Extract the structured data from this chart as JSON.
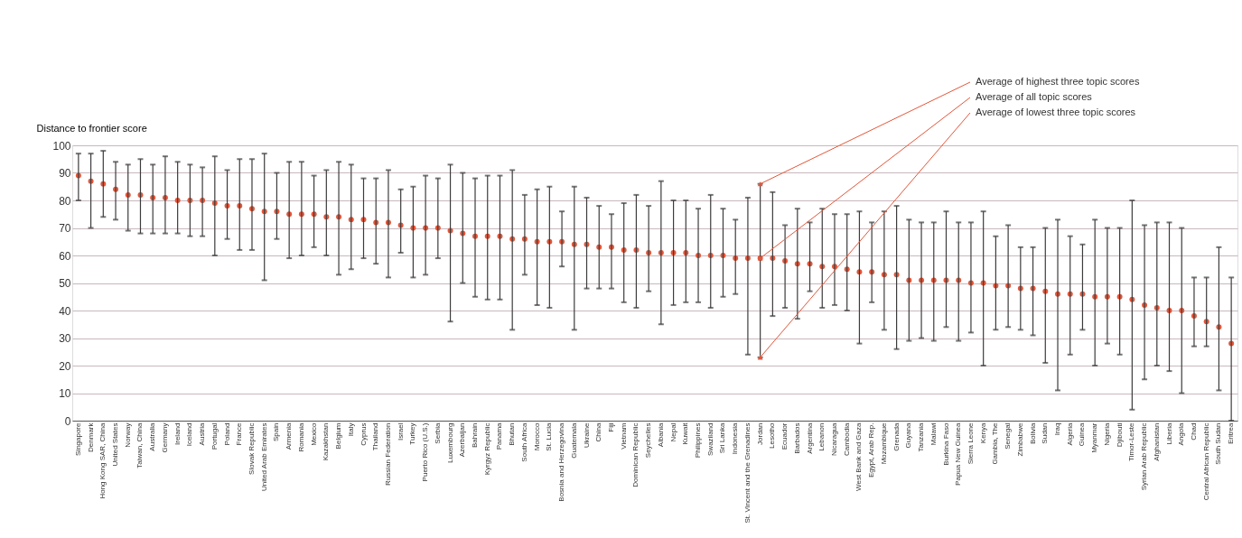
{
  "chart_data": {
    "type": "scatter",
    "ylabel": "Distance to frontier score",
    "categories": [
      "Singapore",
      "Denmark",
      "Hong Kong SAR, China",
      "United States",
      "Norway",
      "Taiwan, China",
      "Australia",
      "Germany",
      "Ireland",
      "Iceland",
      "Austria",
      "Portugal",
      "Poland",
      "France",
      "Slovak Republic",
      "United Arab Emirates",
      "Spain",
      "Armenia",
      "Romania",
      "Mexico",
      "Kazakhstan",
      "Belgium",
      "Italy",
      "Cyprus",
      "Thailand",
      "Russian Federation",
      "Israel",
      "Turkey",
      "Puerto Rico (U.S.)",
      "Serbia",
      "Luxembourg",
      "Azerbaijan",
      "Bahrain",
      "Kyrgyz Republic",
      "Panama",
      "Bhutan",
      "South Africa",
      "Morocco",
      "St. Lucia",
      "Bosnia and Herzegovina",
      "Guatemala",
      "Ukraine",
      "China",
      "Fiji",
      "Vietnam",
      "Dominican Republic",
      "Seychelles",
      "Albania",
      "Nepal",
      "Kuwait",
      "Philippines",
      "Swaziland",
      "Sri Lanka",
      "Indonesia",
      "St. Vincent and the Grenadines",
      "Jordan",
      "Lesotho",
      "Ecuador",
      "Barbados",
      "Argentina",
      "Lebanon",
      "Nicaragua",
      "Cambodia",
      "West Bank and Gaza",
      "Egypt, Arab Rep.",
      "Mozambique",
      "Grenada",
      "Guyana",
      "Tanzania",
      "Malawi",
      "Burkina Faso",
      "Papua New Guinea",
      "Sierra Leone",
      "Kenya",
      "Gambia, The",
      "Senegal",
      "Zimbabwe",
      "Bolivia",
      "Sudan",
      "Iraq",
      "Algeria",
      "Guinea",
      "Myanmar",
      "Nigeria",
      "Djibouti",
      "Timor-Leste",
      "Syrian Arab Republic",
      "Afghanistan",
      "Liberia",
      "Angola",
      "Chad",
      "Central African Republic",
      "South Sudan",
      "Eritrea"
    ],
    "series": [
      {
        "color": "#e2563a",
        "values": [
          89,
          87,
          86,
          84,
          82,
          82,
          81,
          81,
          80,
          80,
          80,
          79,
          78,
          78,
          77,
          76,
          76,
          75,
          75,
          75,
          74,
          74,
          73,
          73,
          72,
          72,
          71,
          70,
          70,
          70,
          69,
          68,
          67,
          67,
          67,
          66,
          66,
          65,
          65,
          65,
          64,
          64,
          63,
          63,
          62,
          62,
          61,
          61,
          61,
          61,
          60,
          60,
          60,
          59,
          59,
          59,
          59,
          58,
          57,
          57,
          56,
          56,
          55,
          54,
          54,
          53,
          53,
          51,
          51,
          51,
          51,
          51,
          50,
          50,
          49,
          49,
          48,
          48,
          47,
          46,
          46,
          46,
          45,
          45,
          45,
          44,
          42,
          41,
          40,
          40,
          38,
          36,
          34,
          28
        ],
        "errors": [
          [
            80,
            97
          ],
          [
            70,
            97
          ],
          [
            74,
            98
          ],
          [
            73,
            94
          ],
          [
            69,
            93
          ],
          [
            68,
            95
          ],
          [
            68,
            93
          ],
          [
            68,
            96
          ],
          [
            68,
            94
          ],
          [
            67,
            93
          ],
          [
            67,
            92
          ],
          [
            60,
            96
          ],
          [
            66,
            91
          ],
          [
            62,
            95
          ],
          [
            62,
            95
          ],
          [
            51,
            97
          ],
          [
            66,
            90
          ],
          [
            59,
            94
          ],
          [
            60,
            94
          ],
          [
            63,
            89
          ],
          [
            60,
            91
          ],
          [
            53,
            94
          ],
          [
            55,
            93
          ],
          [
            59,
            88
          ],
          [
            57,
            88
          ],
          [
            52,
            91
          ],
          [
            61,
            84
          ],
          [
            52,
            85
          ],
          [
            53,
            89
          ],
          [
            59,
            88
          ],
          [
            36,
            93
          ],
          [
            50,
            90
          ],
          [
            45,
            88
          ],
          [
            44,
            89
          ],
          [
            44,
            89
          ],
          [
            33,
            91
          ],
          [
            53,
            82
          ],
          [
            42,
            84
          ],
          [
            41,
            85
          ],
          [
            56,
            76
          ],
          [
            33,
            85
          ],
          [
            48,
            81
          ],
          [
            48,
            78
          ],
          [
            48,
            75
          ],
          [
            43,
            79
          ],
          [
            41,
            82
          ],
          [
            47,
            78
          ],
          [
            35,
            87
          ],
          [
            42,
            80
          ],
          [
            43,
            80
          ],
          [
            43,
            77
          ],
          [
            41,
            82
          ],
          [
            45,
            77
          ],
          [
            46,
            73
          ],
          [
            24,
            81
          ],
          [
            23,
            86
          ],
          [
            38,
            83
          ],
          [
            41,
            71
          ],
          [
            37,
            77
          ],
          [
            47,
            72
          ],
          [
            41,
            77
          ],
          [
            42,
            75
          ],
          [
            40,
            75
          ],
          [
            28,
            76
          ],
          [
            43,
            72
          ],
          [
            33,
            76
          ],
          [
            26,
            78
          ],
          [
            29,
            73
          ],
          [
            30,
            72
          ],
          [
            29,
            72
          ],
          [
            34,
            76
          ],
          [
            29,
            72
          ],
          [
            32,
            72
          ],
          [
            20,
            76
          ],
          [
            33,
            67
          ],
          [
            34,
            71
          ],
          [
            33,
            63
          ],
          [
            31,
            63
          ],
          [
            21,
            70
          ],
          [
            11,
            73
          ],
          [
            24,
            67
          ],
          [
            33,
            64
          ],
          [
            20,
            73
          ],
          [
            28,
            70
          ],
          [
            24,
            70
          ],
          [
            4,
            80
          ],
          [
            15,
            71
          ],
          [
            20,
            72
          ],
          [
            18,
            72
          ],
          [
            10,
            70
          ],
          [
            27,
            52
          ],
          [
            27,
            52
          ],
          [
            11,
            63
          ],
          [
            0,
            52
          ]
        ]
      }
    ],
    "ylim": [
      0,
      100
    ],
    "yticks": [
      0,
      10,
      20,
      30,
      40,
      50,
      60,
      70,
      80,
      90,
      100
    ],
    "grid": "y",
    "marker": "circle",
    "annotations": [
      {
        "text": "Average of highest three topic scores",
        "x": "Jordan",
        "y": 86
      },
      {
        "text": "Average of all topic scores",
        "x": "Jordan",
        "y": 59
      },
      {
        "text": "Average of lowest three topic scores",
        "x": "Jordan",
        "y": 23
      }
    ]
  }
}
